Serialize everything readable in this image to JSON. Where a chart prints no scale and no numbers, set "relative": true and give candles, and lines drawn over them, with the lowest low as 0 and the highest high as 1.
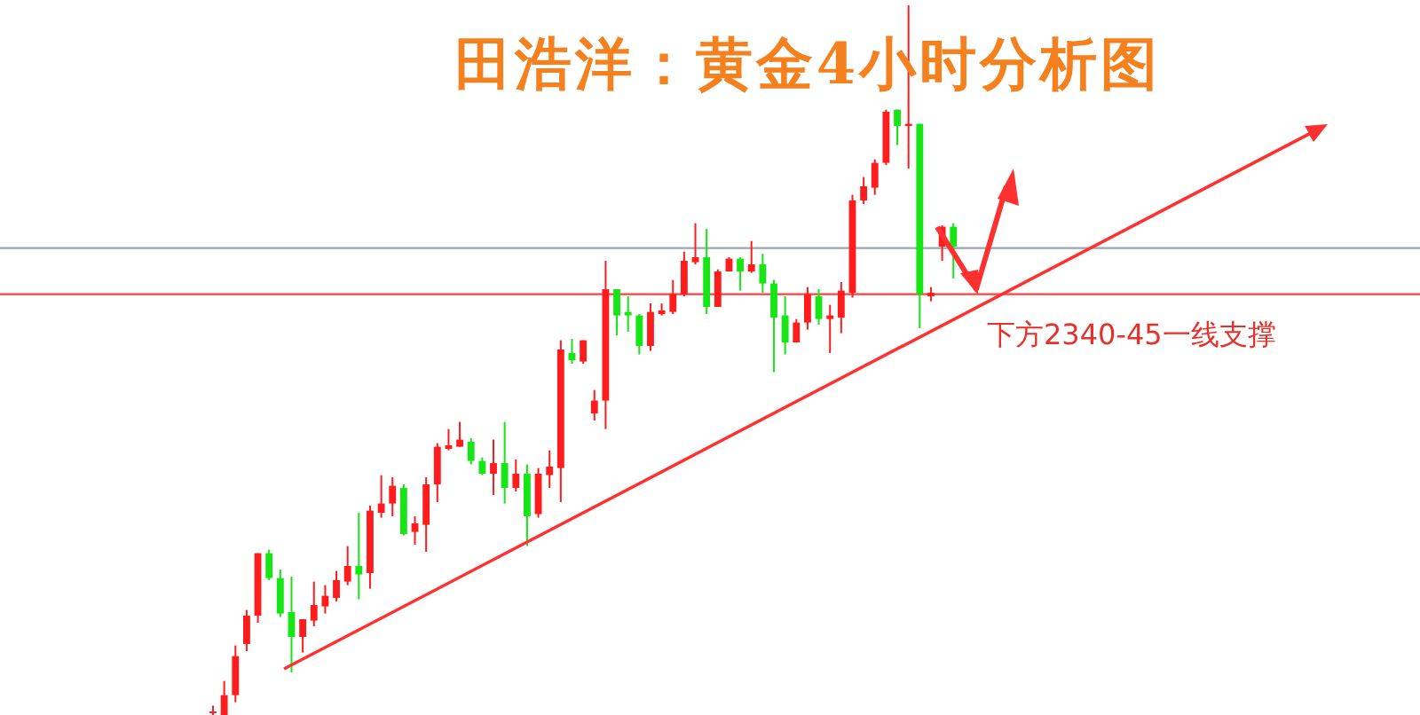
{
  "chart_data": {
    "type": "candlestick",
    "title": "田浩洋：黄金4小时分析图",
    "relative": true,
    "categories": [
      null,
      null,
      null,
      null,
      null,
      null,
      null,
      null,
      null,
      null,
      null,
      null,
      null,
      null,
      null,
      null,
      null,
      null,
      null,
      null,
      null,
      null,
      null,
      null,
      null,
      null,
      null,
      null,
      null,
      null,
      null,
      null,
      null,
      null,
      null,
      null,
      null,
      null,
      null,
      null,
      null,
      null,
      null,
      null,
      null,
      null,
      null,
      null,
      null,
      null,
      null,
      null,
      null,
      null,
      null,
      null,
      null,
      null,
      null,
      null,
      null,
      null,
      null,
      null,
      null,
      null,
      null
    ],
    "colors": [
      "#ff1c1c",
      "#ff1c1c",
      "#ff1c1c",
      "#ff1c1c",
      "#ff1c1c",
      "#16e616",
      "#16e616",
      "#16e616",
      "#ff1c1c",
      "#ff1c1c",
      "#ff1c1c",
      "#ff1c1c",
      "#ff1c1c",
      "#16e616",
      "#ff1c1c",
      "#ff1c1c",
      "#ff1c1c",
      "#16e616",
      "#ff1c1c",
      "#ff1c1c",
      "#ff1c1c",
      "#ff1c1c",
      "#ff1c1c",
      "#16e616",
      "#16e616",
      "#ff1c1c",
      "#16e616",
      "#ff1c1c",
      "#16e616",
      "#ff1c1c",
      "#ff1c1c",
      "#ff1c1c",
      "#16e616",
      "#ff1c1c",
      "#ff1c1c",
      "#ff1c1c",
      "#16e616",
      "#16e616",
      "#16e616",
      "#ff1c1c",
      "#ff1c1c",
      "#ff1c1c",
      "#ff1c1c",
      "#ff1c1c",
      "#16e616",
      "#ff1c1c",
      "#ff1c1c",
      "#16e616",
      "#ff1c1c",
      "#16e616",
      "#16e616",
      "#16e616",
      "#ff1c1c",
      "#ff1c1c",
      "#16e616",
      "#ff1c1c",
      "#ff1c1c",
      "#ff1c1c",
      "#ff1c1c",
      "#ff1c1c",
      "#ff1c1c",
      "#16e616",
      "#ff1c1c",
      "#16e616",
      "#ff1c1c",
      "#ff1c1c",
      "#16e616"
    ],
    "ohlc": [
      [
        0.005,
        0.013,
        0,
        0.005
      ],
      [
        0,
        0.048,
        0,
        0.028
      ],
      [
        0.028,
        0.098,
        0.018,
        0.083
      ],
      [
        0.1,
        0.148,
        0.09,
        0.14
      ],
      [
        0.14,
        0.228,
        0.13,
        0.228
      ],
      [
        0.228,
        0.233,
        0.19,
        0.193
      ],
      [
        0.193,
        0.205,
        0.138,
        0.143
      ],
      [
        0.145,
        0.195,
        0.06,
        0.11
      ],
      [
        0.11,
        0.135,
        0.088,
        0.135
      ],
      [
        0.133,
        0.188,
        0.125,
        0.155
      ],
      [
        0.153,
        0.183,
        0.143,
        0.168
      ],
      [
        0.165,
        0.203,
        0.16,
        0.19
      ],
      [
        0.188,
        0.238,
        0.183,
        0.21
      ],
      [
        0.21,
        0.285,
        0.163,
        0.198
      ],
      [
        0.2,
        0.295,
        0.178,
        0.288
      ],
      [
        0.285,
        0.338,
        0.278,
        0.298
      ],
      [
        0.298,
        0.335,
        0.28,
        0.323
      ],
      [
        0.32,
        0.325,
        0.253,
        0.255
      ],
      [
        0.258,
        0.28,
        0.24,
        0.27
      ],
      [
        0.268,
        0.335,
        0.23,
        0.325
      ],
      [
        0.325,
        0.383,
        0.3,
        0.378
      ],
      [
        0.375,
        0.403,
        0.373,
        0.38
      ],
      [
        0.378,
        0.413,
        0.378,
        0.388
      ],
      [
        0.385,
        0.39,
        0.353,
        0.358
      ],
      [
        0.358,
        0.363,
        0.338,
        0.34
      ],
      [
        0.34,
        0.388,
        0.31,
        0.355
      ],
      [
        0.355,
        0.413,
        0.298,
        0.32
      ],
      [
        0.32,
        0.36,
        0.315,
        0.34
      ],
      [
        0.34,
        0.353,
        0.238,
        0.28
      ],
      [
        0.283,
        0.348,
        0.278,
        0.34
      ],
      [
        0.338,
        0.373,
        0.32,
        0.35
      ],
      [
        0.348,
        0.528,
        0.3,
        0.515
      ],
      [
        0.51,
        0.53,
        0.495,
        0.5
      ],
      [
        0.498,
        0.528,
        0.495,
        0.528
      ],
      [
        0.425,
        0.458,
        0.415,
        0.443
      ],
      [
        0.443,
        0.64,
        0.403,
        0.6
      ],
      [
        0.6,
        0.6,
        0.535,
        0.563
      ],
      [
        0.568,
        0.59,
        0.54,
        0.563
      ],
      [
        0.563,
        0.565,
        0.508,
        0.52
      ],
      [
        0.52,
        0.58,
        0.513,
        0.568
      ],
      [
        0.565,
        0.58,
        0.563,
        0.57
      ],
      [
        0.568,
        0.613,
        0.565,
        0.593
      ],
      [
        0.593,
        0.653,
        0.59,
        0.64
      ],
      [
        0.638,
        0.693,
        0.635,
        0.645
      ],
      [
        0.645,
        0.685,
        0.565,
        0.575
      ],
      [
        0.575,
        0.628,
        0.575,
        0.625
      ],
      [
        0.625,
        0.645,
        0.625,
        0.643
      ],
      [
        0.643,
        0.645,
        0.598,
        0.625
      ],
      [
        0.625,
        0.668,
        0.623,
        0.635
      ],
      [
        0.635,
        0.65,
        0.595,
        0.608
      ],
      [
        0.608,
        0.613,
        0.483,
        0.56
      ],
      [
        0.563,
        0.59,
        0.508,
        0.525
      ],
      [
        0.525,
        0.558,
        0.525,
        0.553
      ],
      [
        0.553,
        0.603,
        0.543,
        0.593
      ],
      [
        0.59,
        0.6,
        0.55,
        0.558
      ],
      [
        0.558,
        0.578,
        0.51,
        0.563
      ],
      [
        0.56,
        0.61,
        0.538,
        0.598
      ],
      [
        0.595,
        0.733,
        0.588,
        0.725
      ],
      [
        0.725,
        0.758,
        0.72,
        0.745
      ],
      [
        0.743,
        0.783,
        0.733,
        0.778
      ],
      [
        0.778,
        0.853,
        0.775,
        0.85
      ],
      [
        0.853,
        0.853,
        0.803,
        0.83
      ],
      [
        0.83,
        1,
        0.77,
        0.833
      ],
      [
        0.833,
        0.833,
        0.545,
        0.593
      ],
      [
        0.59,
        0.603,
        0.583,
        0.595
      ],
      [
        0.66,
        0.69,
        0.64,
        0.688
      ],
      [
        0.688,
        0.693,
        0.615,
        0.66
      ]
    ],
    "ref_lines": [
      {
        "axis": "y",
        "value": 0.658,
        "color": "#9aa6b2"
      },
      {
        "axis": "y",
        "value": 0.593,
        "color": "#ff4040"
      }
    ],
    "annotations": [
      "下方2340-45一线支撑"
    ]
  }
}
